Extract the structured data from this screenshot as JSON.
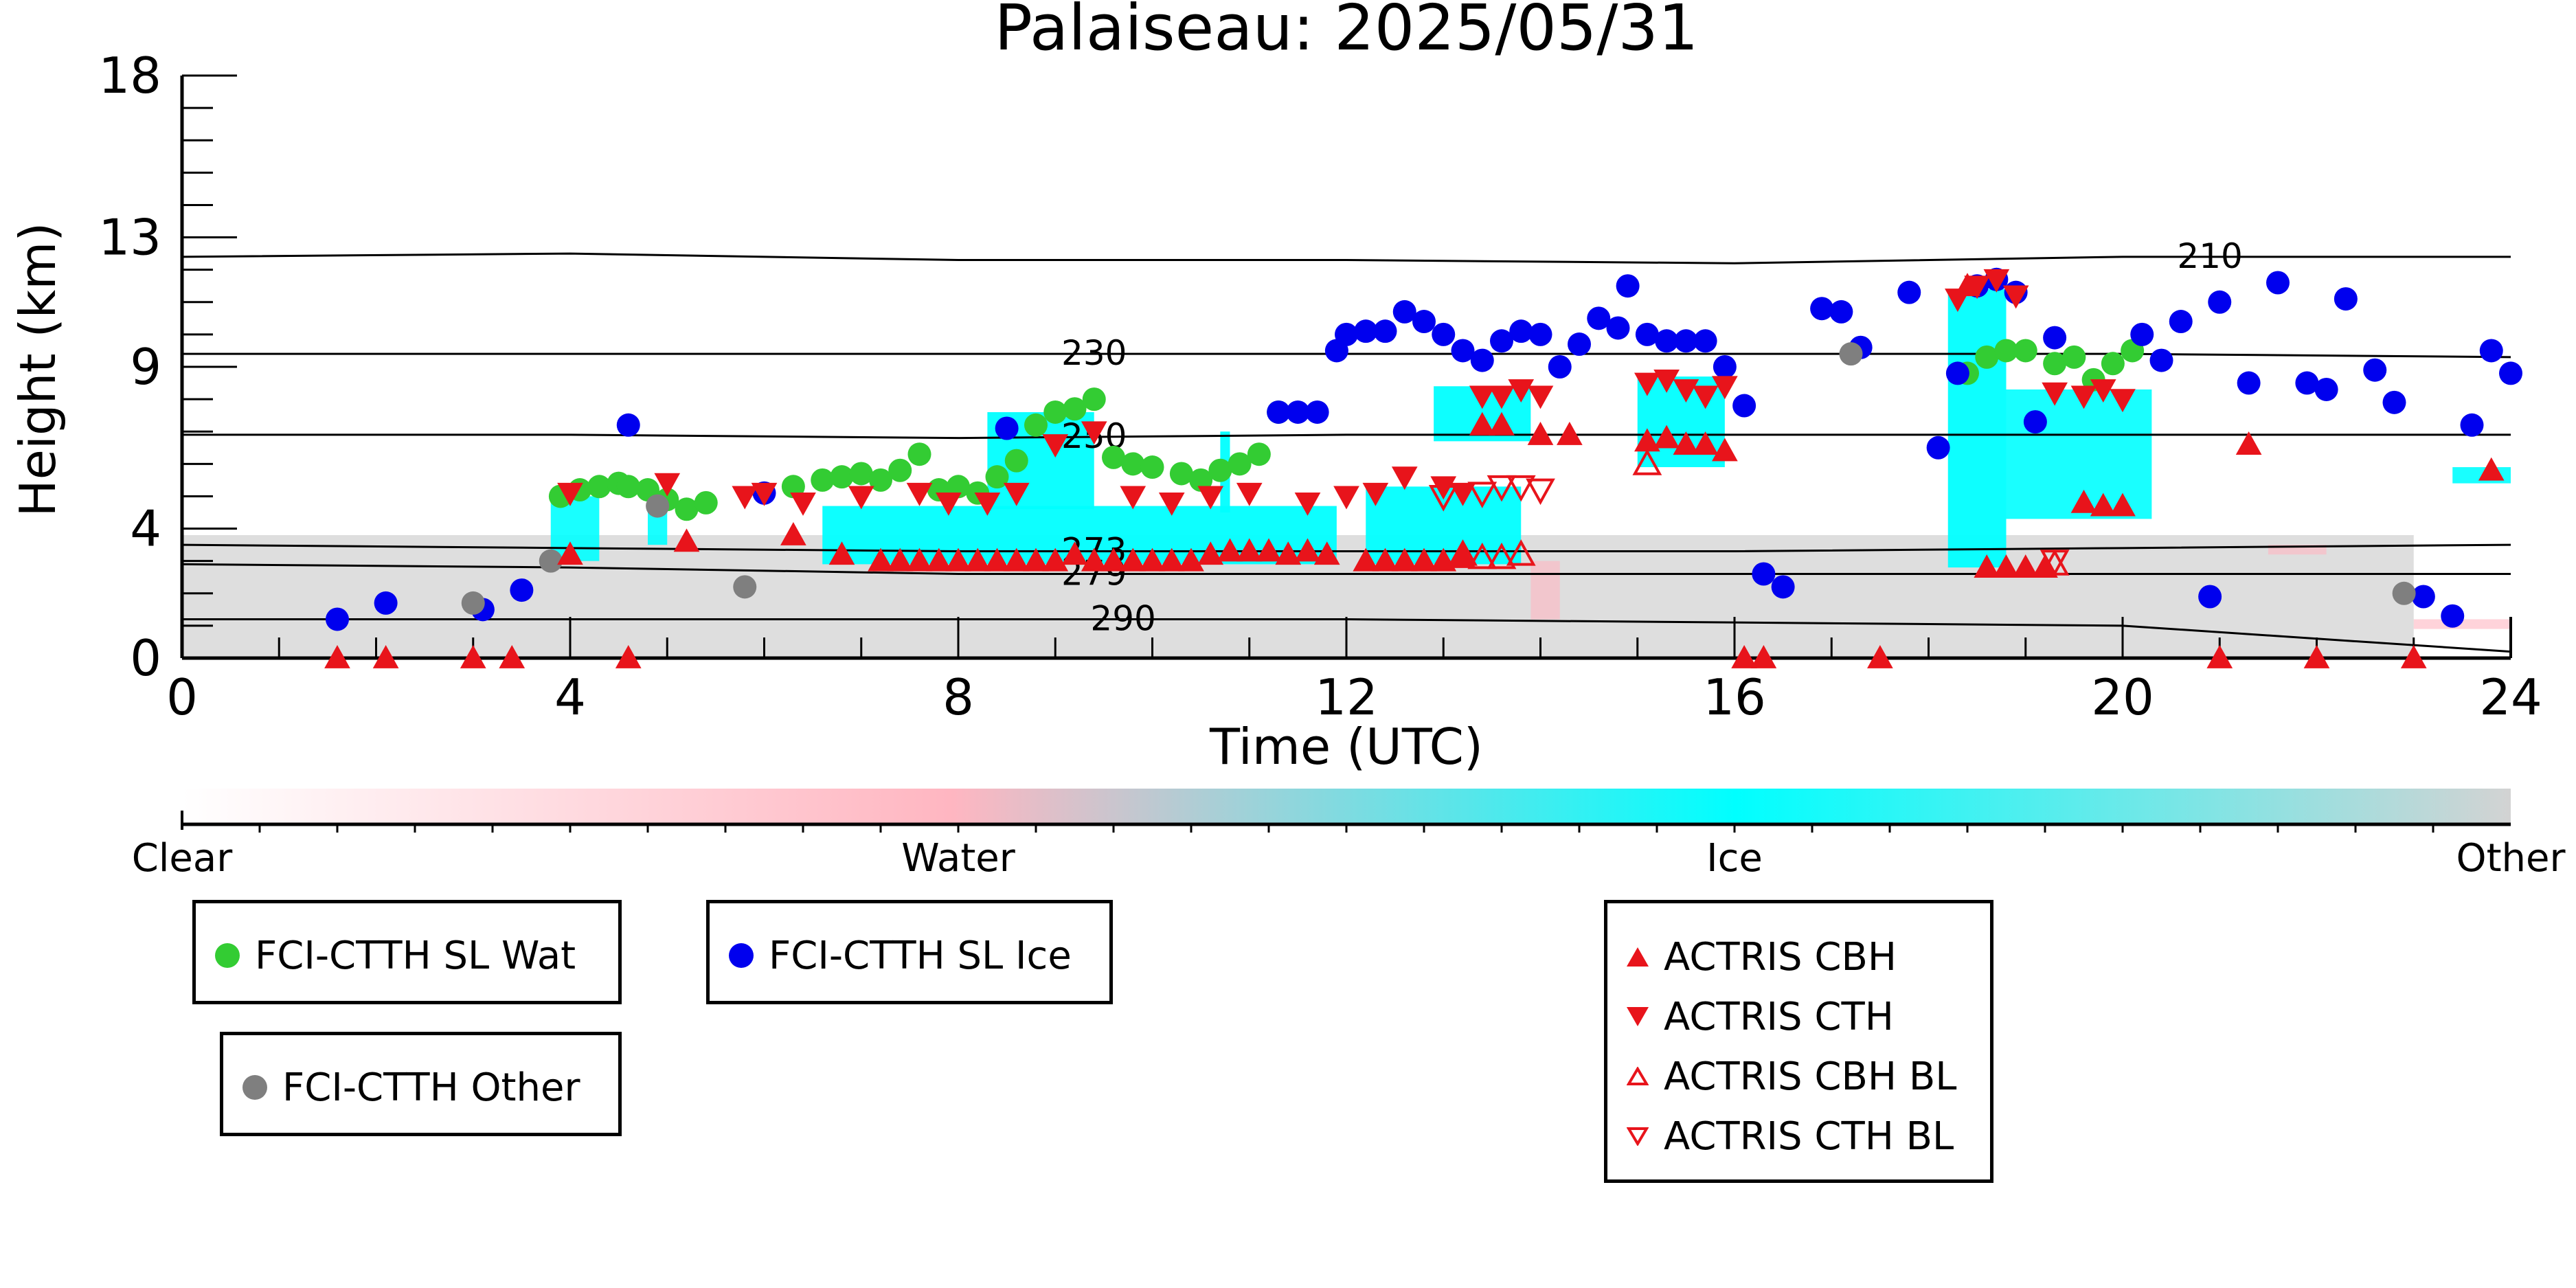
{
  "chart_data": {
    "type": "scatter",
    "title": "Palaiseau: 2025/05/31",
    "xlabel": "Time (UTC)",
    "ylabel": "Height (km)",
    "xlim": [
      0,
      24
    ],
    "ylim": [
      0,
      18
    ],
    "x_ticks": [
      0,
      4,
      8,
      12,
      16,
      20,
      24
    ],
    "y_ticks": [
      0,
      4,
      9,
      13,
      18
    ],
    "colorbar": {
      "labels": [
        "Clear",
        "Water",
        "Ice",
        "Other"
      ],
      "colors": [
        "#ffffff",
        "#ffb6c1",
        "#00ffff",
        "#d3d3d3"
      ]
    },
    "isotherms": [
      {
        "label": "210",
        "y": [
          12.4,
          12.5,
          12.3,
          12.3,
          12.2,
          12.4,
          12.4
        ]
      },
      {
        "label": "230",
        "y": [
          9.4,
          9.4,
          9.4,
          9.4,
          9.4,
          9.4,
          9.3
        ]
      },
      {
        "label": "250",
        "y": [
          6.9,
          6.9,
          6.8,
          6.9,
          6.9,
          6.9,
          6.9
        ]
      },
      {
        "label": "273",
        "y": [
          3.5,
          3.4,
          3.3,
          3.3,
          3.3,
          3.4,
          3.5
        ]
      },
      {
        "label": "279",
        "y": [
          2.9,
          2.8,
          2.6,
          2.6,
          2.6,
          2.6,
          2.6
        ]
      },
      {
        "label": "290",
        "y": [
          1.2,
          1.2,
          1.2,
          1.2,
          1.1,
          1.0,
          0.2
        ]
      }
    ],
    "series": [
      {
        "name": "FCI-CTTH SL Wat",
        "marker": "dot",
        "color": "#33cc33",
        "x": [
          3.9,
          4.1,
          4.3,
          4.5,
          4.6,
          4.8,
          5.0,
          5.2,
          5.4,
          6.3,
          6.6,
          6.8,
          7.0,
          7.2,
          7.4,
          7.6,
          7.8,
          8.0,
          8.2,
          8.4,
          8.6,
          8.8,
          9.0,
          9.2,
          9.4,
          9.6,
          9.8,
          10.0,
          10.3,
          10.5,
          10.7,
          10.9,
          11.1,
          11.3,
          18.4,
          18.6,
          18.8,
          19.0,
          19.3,
          19.5,
          19.7,
          19.9,
          20.1
        ],
        "y": [
          5.0,
          5.2,
          5.3,
          5.4,
          5.3,
          5.2,
          4.9,
          4.6,
          4.8,
          5.3,
          5.5,
          5.6,
          5.7,
          5.5,
          5.8,
          6.3,
          5.2,
          5.3,
          5.1,
          5.6,
          6.1,
          7.2,
          7.6,
          7.7,
          8.0,
          6.2,
          6.0,
          5.9,
          5.7,
          5.5,
          5.8,
          6.0,
          6.3,
          7.6,
          8.8,
          9.3,
          9.5,
          9.5,
          9.1,
          9.3,
          8.6,
          9.1,
          9.5
        ]
      },
      {
        "name": "FCI-CTTH SL Ice",
        "marker": "dot",
        "color": "#0000ee",
        "x": [
          1.6,
          2.1,
          3.1,
          3.5,
          4.6,
          6.0,
          8.5,
          11.3,
          11.5,
          11.7,
          11.9,
          12.0,
          12.2,
          12.4,
          12.6,
          12.8,
          13.0,
          13.2,
          13.4,
          13.6,
          13.8,
          14.0,
          14.2,
          14.4,
          14.6,
          14.8,
          14.9,
          15.1,
          15.3,
          15.5,
          15.7,
          15.9,
          16.1,
          16.3,
          16.5,
          16.9,
          17.1,
          17.3,
          17.8,
          18.1,
          18.3,
          18.5,
          18.7,
          18.9,
          19.1,
          19.3,
          20.2,
          20.4,
          20.6,
          20.9,
          21.0,
          21.3,
          21.6,
          21.9,
          22.1,
          22.3,
          22.6,
          22.8,
          23.1,
          23.4,
          23.6,
          23.8,
          24.0
        ],
        "y": [
          1.2,
          1.7,
          1.5,
          2.1,
          7.2,
          5.1,
          7.1,
          7.6,
          7.6,
          7.6,
          9.5,
          10.0,
          10.1,
          10.1,
          10.7,
          10.4,
          10.0,
          9.5,
          9.2,
          9.8,
          10.1,
          10.0,
          9.0,
          9.7,
          10.5,
          10.2,
          11.5,
          10.0,
          9.8,
          9.8,
          9.8,
          9.0,
          7.8,
          2.6,
          2.2,
          10.8,
          10.7,
          9.6,
          11.3,
          6.5,
          8.8,
          11.5,
          11.7,
          11.3,
          7.3,
          9.9,
          10.0,
          9.2,
          10.4,
          1.9,
          11.0,
          8.5,
          11.6,
          8.5,
          8.3,
          11.1,
          8.9,
          7.9,
          1.9,
          1.3,
          7.2,
          9.5,
          8.8
        ]
      },
      {
        "name": "FCI-CTTH Other",
        "marker": "dot",
        "color": "#7f7f7f",
        "x": [
          3.0,
          3.8,
          4.9,
          5.8,
          17.2,
          22.9
        ],
        "y": [
          1.7,
          3.0,
          4.7,
          2.2,
          9.4,
          2.0
        ]
      },
      {
        "name": "ACTRIS CBH",
        "marker": "triangle-up",
        "color": "#e8141b",
        "x": [
          1.6,
          2.1,
          3.0,
          3.4,
          4.6,
          4.0,
          5.2,
          6.3,
          6.8,
          7.2,
          7.4,
          7.6,
          7.8,
          8.0,
          8.2,
          8.4,
          8.6,
          8.8,
          9.0,
          9.2,
          9.4,
          9.6,
          9.8,
          10.0,
          10.2,
          10.4,
          10.6,
          10.8,
          11.0,
          11.2,
          11.4,
          11.6,
          11.8,
          12.2,
          12.4,
          12.6,
          12.8,
          13.0,
          13.2,
          13.4,
          13.6,
          14.0,
          14.3,
          15.1,
          15.3,
          15.5,
          15.7,
          15.9,
          16.1,
          16.3,
          17.5,
          18.4,
          18.6,
          18.8,
          19.0,
          19.2,
          19.6,
          19.8,
          20.0,
          21.0,
          21.3,
          22.0,
          23.0,
          23.8
        ],
        "y": [
          0,
          0,
          0,
          0,
          0,
          3.2,
          3.6,
          3.8,
          3.2,
          3.0,
          3.0,
          3.0,
          3.0,
          3.0,
          3.0,
          3.0,
          3.0,
          3.0,
          3.0,
          3.2,
          3.0,
          3.0,
          3.0,
          3.0,
          3.0,
          3.0,
          3.2,
          3.3,
          3.3,
          3.3,
          3.2,
          3.3,
          3.2,
          3.0,
          3.0,
          3.0,
          3.0,
          3.0,
          3.1,
          7.2,
          7.2,
          6.9,
          6.9,
          6.7,
          6.8,
          6.6,
          6.6,
          6.4,
          0,
          0,
          0,
          11.5,
          2.8,
          2.8,
          2.8,
          2.8,
          4.8,
          4.7,
          4.7,
          0,
          6.6,
          0,
          0,
          5.8
        ]
      },
      {
        "name": "ACTRIS CTH",
        "marker": "triangle-down",
        "color": "#e8141b",
        "x": [
          4.0,
          5.0,
          5.8,
          6.0,
          6.4,
          7.0,
          7.6,
          7.9,
          8.3,
          8.6,
          9.0,
          9.4,
          9.8,
          10.2,
          10.6,
          11.0,
          11.6,
          12.0,
          12.3,
          12.6,
          13.0,
          13.2,
          13.4,
          13.6,
          13.8,
          14.0,
          15.1,
          15.3,
          15.5,
          15.7,
          15.9,
          18.3,
          18.5,
          18.7,
          18.9,
          19.3,
          19.6,
          19.8,
          20.0
        ],
        "y": [
          5.1,
          5.4,
          5.0,
          5.1,
          4.8,
          5.0,
          5.1,
          4.8,
          4.8,
          5.1,
          6.6,
          7.0,
          5.0,
          4.8,
          5.0,
          5.1,
          4.8,
          5.0,
          5.1,
          5.6,
          5.3,
          5.1,
          8.1,
          8.1,
          8.3,
          8.1,
          8.5,
          8.6,
          8.3,
          8.1,
          8.4,
          11.1,
          11.5,
          11.7,
          11.2,
          8.2,
          8.1,
          8.3,
          8.0
        ]
      },
      {
        "name": "ACTRIS CBH BL",
        "marker": "triangle-up-open",
        "color": "#e8141b",
        "x": [
          13.2,
          13.4,
          13.6,
          13.8,
          15.1,
          19.3
        ],
        "y": [
          3.2,
          3.1,
          3.1,
          3.2,
          6.0,
          2.9
        ]
      },
      {
        "name": "ACTRIS CTH BL",
        "marker": "triangle-down-open",
        "color": "#e8141b",
        "x": [
          13.0,
          13.4,
          13.6,
          13.8,
          14.0,
          19.3
        ],
        "y": [
          5.0,
          5.1,
          5.3,
          5.3,
          5.2,
          3.0
        ]
      }
    ],
    "legend": [
      {
        "label": "FCI-CTTH SL Wat",
        "marker": "dot",
        "color": "#33cc33"
      },
      {
        "label": "FCI-CTTH SL Ice",
        "marker": "dot",
        "color": "#0000ee"
      },
      {
        "label": "FCI-CTTH Other",
        "marker": "dot",
        "color": "#7f7f7f"
      },
      {
        "label": "ACTRIS CBH",
        "marker": "triangle-up",
        "color": "#e8141b"
      },
      {
        "label": "ACTRIS CTH",
        "marker": "triangle-down",
        "color": "#e8141b"
      },
      {
        "label": "ACTRIS CBH BL",
        "marker": "triangle-up-open",
        "color": "#e8141b"
      },
      {
        "label": "ACTRIS CTH BL",
        "marker": "triangle-down-open",
        "color": "#e8141b"
      }
    ]
  }
}
